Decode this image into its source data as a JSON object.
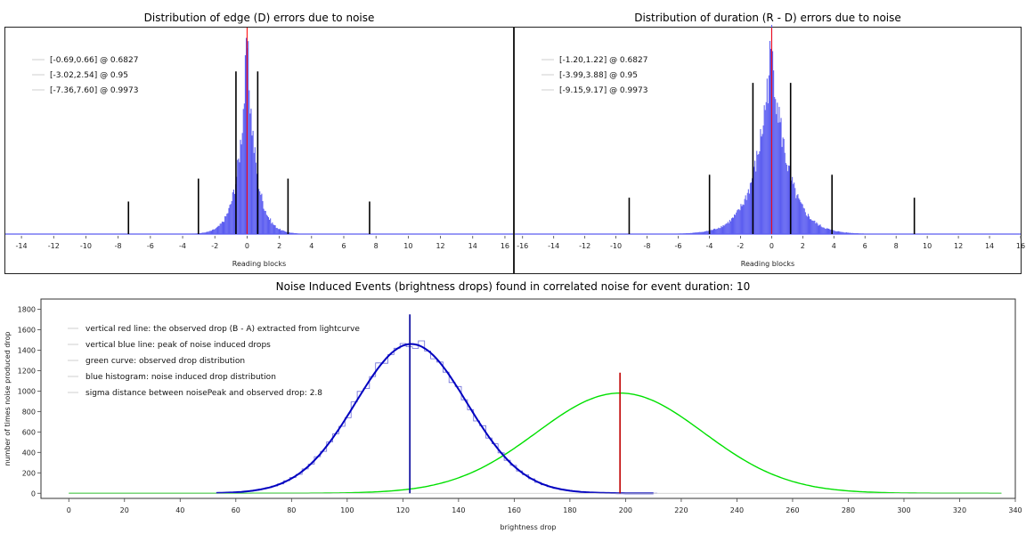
{
  "chart_data": [
    {
      "type": "histogram",
      "title": "Distribution of edge (D) errors due to noise",
      "xlabel": "Reading blocks",
      "ylabel": "",
      "xlim": [
        -15,
        16.5
      ],
      "xticks": [
        -14,
        -12,
        -10,
        -8,
        -6,
        -4,
        -2,
        0,
        2,
        4,
        6,
        8,
        10,
        12,
        14,
        16
      ],
      "center": 0,
      "peak_height": 1.0,
      "legend": [
        {
          "label": "[-0.69,0.66] @ 0.6827",
          "interval": [
            -0.69,
            0.66
          ],
          "marker_height": 0.85
        },
        {
          "label": "[-3.02,2.54] @ 0.95",
          "interval": [
            -3.02,
            2.54
          ],
          "marker_height": 0.29
        },
        {
          "label": "[-7.36,7.60] @ 0.9973",
          "interval": [
            -7.36,
            7.6
          ],
          "marker_height": 0.17
        }
      ],
      "colors": {
        "hist": "#5a5cf0",
        "center_line": "#ff0000",
        "markers": "#000000"
      }
    },
    {
      "type": "histogram",
      "title": "Distribution of duration (R - D) errors due to noise",
      "xlabel": "Reading blocks",
      "ylabel": "",
      "xlim": [
        -16.5,
        16
      ],
      "xticks": [
        -16,
        -14,
        -12,
        -10,
        -8,
        -6,
        -4,
        -2,
        0,
        2,
        4,
        6,
        8,
        10,
        12,
        14,
        16
      ],
      "center": 0,
      "peak_height": 1.0,
      "legend": [
        {
          "label": "[-1.20,1.22] @ 0.6827",
          "interval": [
            -1.2,
            1.22
          ],
          "marker_height": 0.79
        },
        {
          "label": "[-3.99,3.88] @ 0.95",
          "interval": [
            -3.99,
            3.88
          ],
          "marker_height": 0.31
        },
        {
          "label": "[-9.15,9.17] @ 0.9973",
          "interval": [
            -9.15,
            9.17
          ],
          "marker_height": 0.19
        }
      ],
      "colors": {
        "hist": "#5a5cf0",
        "center_line": "#ff0000",
        "markers": "#000000"
      }
    },
    {
      "type": "line",
      "title": "Noise Induced Events (brightness drops) found in correlated noise for event duration: 10",
      "xlabel": "brightness drop",
      "ylabel": "number of times noise produced drop",
      "xlim": [
        -10,
        340
      ],
      "ylim": [
        -50,
        1900
      ],
      "xticks": [
        0,
        20,
        40,
        60,
        80,
        100,
        120,
        140,
        160,
        180,
        200,
        220,
        240,
        260,
        280,
        300,
        320,
        340
      ],
      "yticks": [
        0,
        200,
        400,
        600,
        800,
        1000,
        1200,
        1400,
        1600,
        1800
      ],
      "legend": [
        "vertical red line: the observed drop (B - A) extracted from lightcurve",
        "vertical blue line: peak of noise induced drops",
        "green curve: observed drop distribution",
        "blue histogram: noise induced drop distribution",
        "sigma distance between noisePeak and observed drop: 2.8"
      ],
      "blue_curve": {
        "peak_x": 123,
        "peak_y": 1460,
        "sigma": 20,
        "x_range": [
          53,
          210
        ]
      },
      "green_curve": {
        "peak_x": 198,
        "peak_y": 980,
        "sigma": 30,
        "x_range": [
          0,
          335
        ]
      },
      "noise_peak_line": {
        "x": 122.5,
        "height": 1750
      },
      "observed_drop_line": {
        "x": 198,
        "height": 1180
      },
      "colors": {
        "blue": "#0000c0",
        "green": "#00e000",
        "red": "#c00000",
        "navy": "#00009a"
      }
    }
  ]
}
